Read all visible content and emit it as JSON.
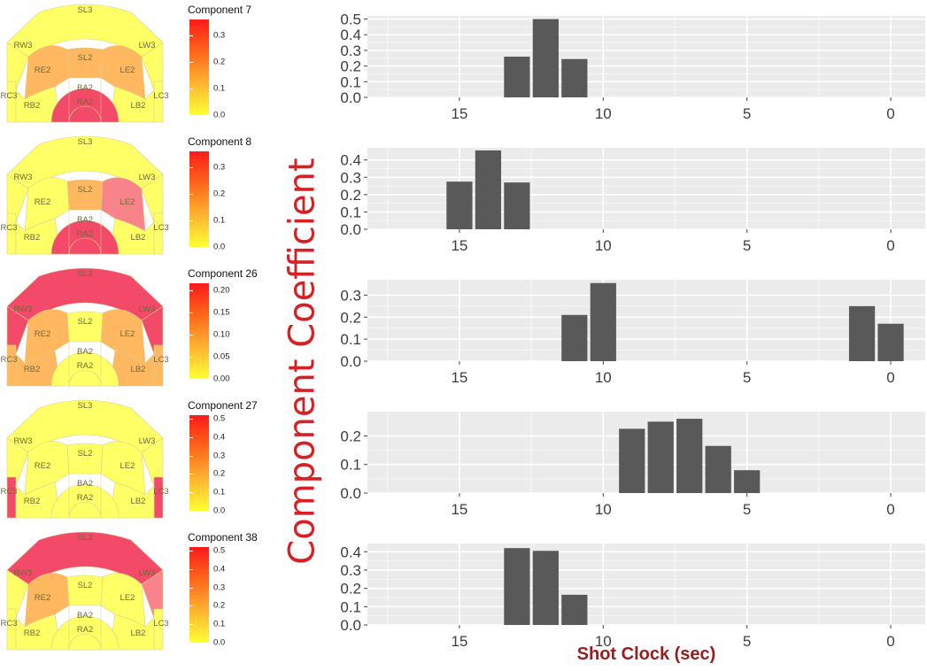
{
  "chart_data": {
    "type": "bar",
    "ylabel": "Component Coefficient",
    "xlabel": "Shot Clock (sec)",
    "xlim": [
      18.2,
      -1.2
    ],
    "x_ticks": [
      15,
      10,
      5,
      0
    ],
    "zones": [
      "SL3",
      "RW3",
      "LW3",
      "SL2",
      "RE2",
      "LE2",
      "BA2",
      "RA2",
      "RC3",
      "RB2",
      "LB2",
      "LC3"
    ],
    "palette": [
      "#ffff66",
      "#ffb860",
      "#f9838a",
      "#f24a68"
    ],
    "panels": [
      {
        "component": "Component 7",
        "legend_ticks": [
          "0.0",
          "0.1",
          "0.2",
          "0.3"
        ],
        "legend_max": 0.36,
        "yticks": [
          0.0,
          0.1,
          0.2,
          0.3,
          0.4,
          0.5
        ],
        "ylim": [
          0,
          0.52
        ],
        "x": [
          13,
          12,
          11
        ],
        "values": [
          0.26,
          0.5,
          0.245
        ],
        "zone_levels": {
          "SL3": 0,
          "RW3": 0,
          "LW3": 0,
          "SL2": 1,
          "RE2": 1,
          "LE2": 1,
          "BA2": 3,
          "RA2": 3,
          "RC3": 0,
          "RB2": 0,
          "LB2": 0,
          "LC3": 0
        }
      },
      {
        "component": "Component 8",
        "legend_ticks": [
          "0.0",
          "0.1",
          "0.2",
          "0.3"
        ],
        "legend_max": 0.36,
        "yticks": [
          0.0,
          0.1,
          0.2,
          0.3,
          0.4
        ],
        "ylim": [
          0,
          0.47
        ],
        "x": [
          15,
          14,
          13
        ],
        "values": [
          0.275,
          0.455,
          0.27
        ],
        "zone_levels": {
          "SL3": 0,
          "RW3": 0,
          "LW3": 0,
          "SL2": 1,
          "RE2": 0,
          "LE2": 2,
          "BA2": 3,
          "RA2": 3,
          "RC3": 0,
          "RB2": 0,
          "LB2": 0,
          "LC3": 0
        }
      },
      {
        "component": "Component 26",
        "legend_ticks": [
          "0.00",
          "0.05",
          "0.10",
          "0.15",
          "0.20"
        ],
        "legend_max": 0.215,
        "yticks": [
          0.0,
          0.1,
          0.2,
          0.3
        ],
        "ylim": [
          0,
          0.37
        ],
        "x": [
          11,
          10,
          1,
          0
        ],
        "values": [
          0.21,
          0.355,
          0.25,
          0.17
        ],
        "zone_levels": {
          "SL3": 3,
          "RW3": 3,
          "LW3": 3,
          "SL2": 0,
          "RE2": 1,
          "LE2": 1,
          "BA2": 0,
          "RA2": 0,
          "RC3": 1,
          "RB2": 1,
          "LB2": 1,
          "LC3": 1
        }
      },
      {
        "component": "Component 27",
        "legend_ticks": [
          "0.0",
          "0.1",
          "0.2",
          "0.3",
          "0.4",
          "0.5"
        ],
        "legend_max": 0.52,
        "yticks": [
          0.0,
          0.1,
          0.2
        ],
        "ylim": [
          0,
          0.285
        ],
        "x": [
          9,
          8,
          7,
          6,
          5
        ],
        "values": [
          0.225,
          0.25,
          0.26,
          0.165,
          0.08
        ],
        "zone_levels": {
          "SL3": 0,
          "RW3": 0,
          "LW3": 0,
          "SL2": 0,
          "RE2": 0,
          "LE2": 0,
          "BA2": 0,
          "RA2": 0,
          "RC3": 3,
          "RB2": 0,
          "LB2": 0,
          "LC3": 3
        }
      },
      {
        "component": "Component 38",
        "legend_ticks": [
          "0.0",
          "0.1",
          "0.2",
          "0.3",
          "0.4",
          "0.5"
        ],
        "legend_max": 0.52,
        "yticks": [
          0.0,
          0.1,
          0.2,
          0.3,
          0.4
        ],
        "ylim": [
          0,
          0.445
        ],
        "x": [
          13,
          12,
          11
        ],
        "values": [
          0.42,
          0.405,
          0.165
        ],
        "zone_levels": {
          "SL3": 3,
          "RW3": 0,
          "LW3": 2,
          "SL2": 0,
          "RE2": 1,
          "LE2": 0,
          "BA2": 0,
          "RA2": 0,
          "RC3": 0,
          "RB2": 0,
          "LB2": 0,
          "LC3": 0
        }
      }
    ]
  }
}
